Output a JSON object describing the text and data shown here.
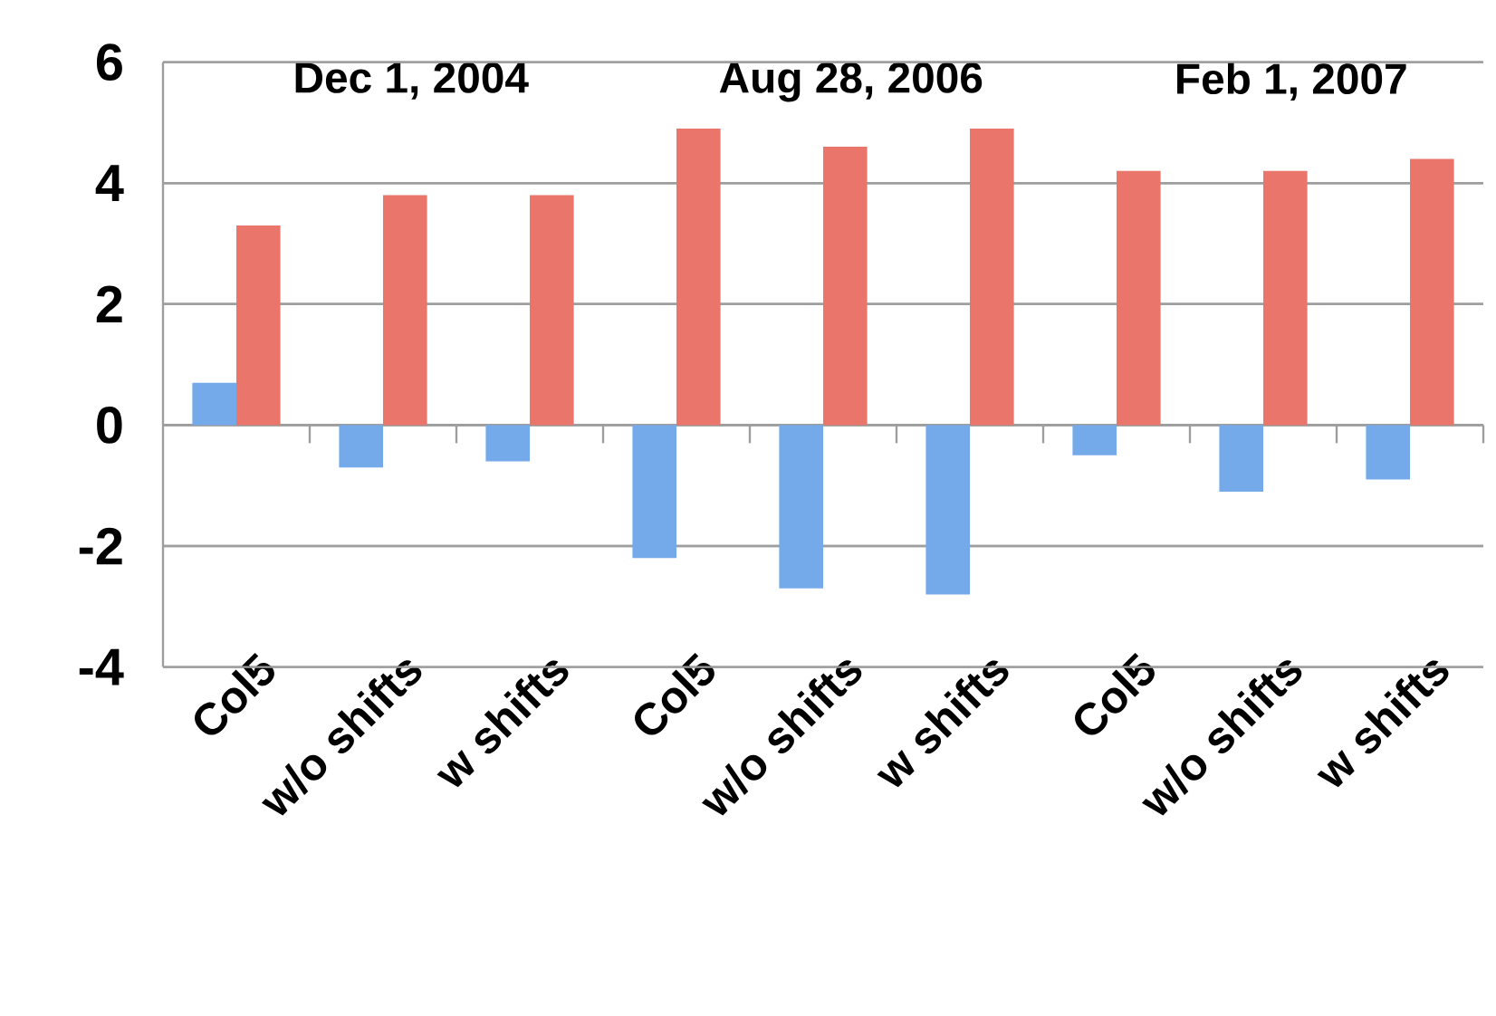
{
  "chart_data": {
    "type": "bar",
    "categories": [
      "Col5",
      "w/o shifts",
      "w shifts",
      "Col5",
      "w/o shifts",
      "w shifts",
      "Col5",
      "w/o shifts",
      "w shifts"
    ],
    "series": [
      {
        "color": "#74a9ea",
        "values": [
          0.7,
          -0.7,
          -0.6,
          -2.2,
          -2.7,
          -2.8,
          -0.5,
          -1.1,
          -0.9
        ]
      },
      {
        "color": "#e9756b",
        "values": [
          3.3,
          3.8,
          3.8,
          4.9,
          4.6,
          4.9,
          4.2,
          4.2,
          4.4
        ]
      }
    ],
    "ylim": [
      -4,
      6
    ],
    "yticks": [
      -4,
      -2,
      0,
      2,
      4,
      6
    ],
    "grid": "y",
    "annotations": [
      "Dec 1, 2004",
      "Aug 28, 2006",
      "Feb 1, 2007"
    ]
  }
}
